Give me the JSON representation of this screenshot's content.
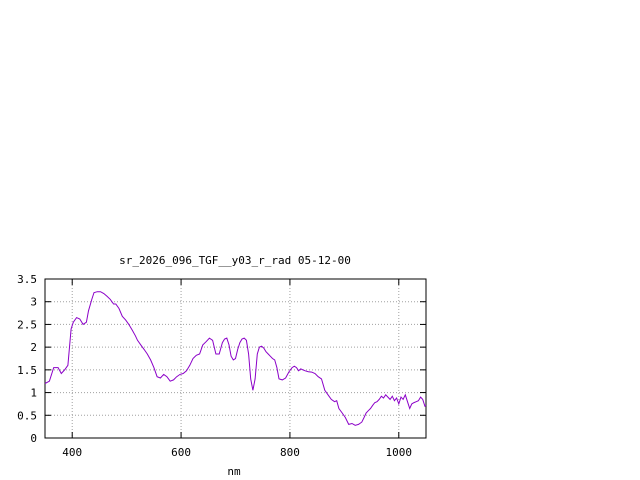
{
  "chart_data": {
    "type": "line",
    "title": "sr_2026_096_TGF__y03_r_rad 05-12-00",
    "xlabel": "nm",
    "ylabel": "",
    "xlim": [
      350,
      1050
    ],
    "ylim": [
      0,
      3.5
    ],
    "xticks": [
      400,
      600,
      800,
      1000
    ],
    "yticks": [
      0,
      0.5,
      1,
      1.5,
      2,
      2.5,
      3,
      3.5
    ],
    "xtick_labels": [
      "400",
      "600",
      "800",
      "1000"
    ],
    "ytick_labels": [
      "0",
      "0.5",
      "1",
      "1.5",
      "2",
      "2.5",
      "3",
      "3.5"
    ],
    "grid": true,
    "series": [
      {
        "color": "#8b00c8",
        "x": [
          350,
          358,
          366,
          374,
          380,
          386,
          392,
          398,
          402,
          408,
          414,
          420,
          426,
          430,
          436,
          440,
          446,
          452,
          458,
          464,
          470,
          476,
          480,
          486,
          492,
          498,
          504,
          510,
          516,
          520,
          526,
          532,
          538,
          544,
          550,
          556,
          562,
          568,
          574,
          580,
          586,
          592,
          598,
          604,
          610,
          616,
          622,
          628,
          634,
          640,
          646,
          652,
          658,
          664,
          670,
          676,
          680,
          684,
          688,
          692,
          696,
          700,
          704,
          708,
          712,
          716,
          720,
          724,
          728,
          732,
          736,
          740,
          744,
          748,
          752,
          756,
          760,
          764,
          768,
          772,
          776,
          780,
          786,
          792,
          798,
          804,
          808,
          812,
          816,
          820,
          824,
          828,
          834,
          840,
          846,
          852,
          858,
          864,
          870,
          876,
          882,
          886,
          890,
          896,
          902,
          908,
          914,
          920,
          926,
          932,
          936,
          940,
          944,
          948,
          952,
          956,
          960,
          964,
          968,
          972,
          976,
          980,
          984,
          988,
          992,
          996,
          1000,
          1004,
          1008,
          1012,
          1016,
          1020,
          1024,
          1028,
          1032,
          1036,
          1040,
          1044,
          1048,
          1050
        ],
        "y": [
          1.2,
          1.25,
          1.55,
          1.55,
          1.42,
          1.5,
          1.6,
          2.4,
          2.55,
          2.65,
          2.62,
          2.5,
          2.55,
          2.8,
          3.05,
          3.2,
          3.22,
          3.22,
          3.18,
          3.12,
          3.05,
          2.95,
          2.95,
          2.85,
          2.68,
          2.6,
          2.5,
          2.38,
          2.25,
          2.15,
          2.05,
          1.95,
          1.85,
          1.72,
          1.55,
          1.35,
          1.32,
          1.4,
          1.35,
          1.25,
          1.28,
          1.35,
          1.4,
          1.42,
          1.48,
          1.6,
          1.75,
          1.82,
          1.85,
          2.05,
          2.12,
          2.2,
          2.15,
          1.85,
          1.85,
          2.1,
          2.18,
          2.2,
          2.05,
          1.8,
          1.72,
          1.75,
          1.95,
          2.1,
          2.18,
          2.2,
          2.15,
          1.85,
          1.3,
          1.05,
          1.3,
          1.85,
          2.0,
          2.02,
          1.98,
          1.9,
          1.85,
          1.8,
          1.75,
          1.72,
          1.55,
          1.3,
          1.28,
          1.32,
          1.45,
          1.55,
          1.58,
          1.55,
          1.48,
          1.52,
          1.5,
          1.48,
          1.46,
          1.45,
          1.42,
          1.35,
          1.3,
          1.05,
          0.95,
          0.85,
          0.8,
          0.82,
          0.65,
          0.55,
          0.45,
          0.3,
          0.32,
          0.28,
          0.3,
          0.35,
          0.45,
          0.55,
          0.6,
          0.65,
          0.72,
          0.78,
          0.8,
          0.85,
          0.92,
          0.88,
          0.95,
          0.9,
          0.85,
          0.92,
          0.82,
          0.88,
          0.75,
          0.9,
          0.85,
          0.95,
          0.8,
          0.65,
          0.75,
          0.78,
          0.8,
          0.82,
          0.9,
          0.85,
          0.7,
          0.72
        ]
      }
    ]
  }
}
